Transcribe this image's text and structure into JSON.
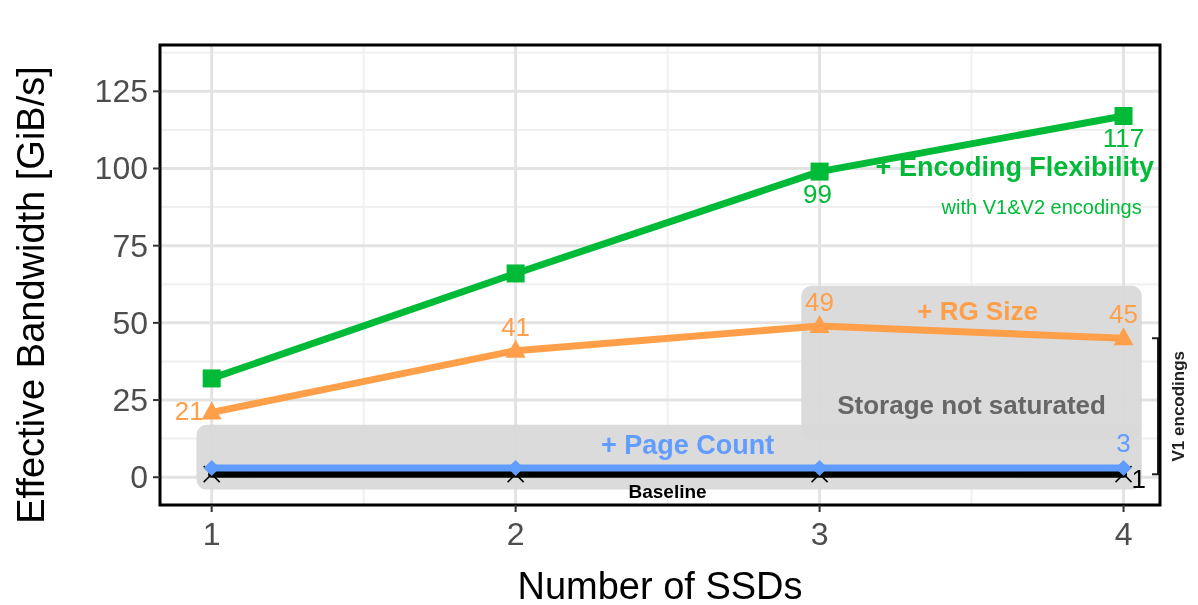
{
  "chart_data": {
    "type": "line",
    "xlabel": "Number of SSDs",
    "ylabel": "Effective Bandwidth [GiB/s]",
    "x": [
      1,
      2,
      3,
      4
    ],
    "xlim": [
      0.83,
      4.12
    ],
    "xticks": [
      1,
      2,
      3,
      4
    ],
    "ylim": [
      -9,
      140
    ],
    "yticks": [
      0,
      25,
      50,
      75,
      100,
      125
    ],
    "grid": true,
    "series": [
      {
        "name": "+ Encoding Flexibility",
        "color": "#00ba38",
        "marker": "square",
        "values": [
          32,
          66,
          99,
          117
        ],
        "value_labels": [
          null,
          null,
          "99",
          "117"
        ]
      },
      {
        "name": "+ RG Size",
        "color": "#ff9f4a",
        "marker": "triangle",
        "values": [
          21,
          41,
          49,
          45
        ],
        "value_labels": [
          "21",
          "41",
          "49",
          "45"
        ]
      },
      {
        "name": "+ Page Count",
        "color": "#619cff",
        "marker": "diamond",
        "values": [
          3,
          3,
          3,
          3
        ],
        "value_labels": [
          null,
          null,
          null,
          "3"
        ]
      },
      {
        "name": "Baseline",
        "color": "#000000",
        "marker": "cross",
        "values": [
          1,
          1,
          1,
          1
        ],
        "value_labels": [
          null,
          null,
          null,
          "1"
        ]
      }
    ],
    "annotations": [
      "with V1&V2 encodings",
      "Storage not saturated",
      "V1 encodings"
    ]
  }
}
